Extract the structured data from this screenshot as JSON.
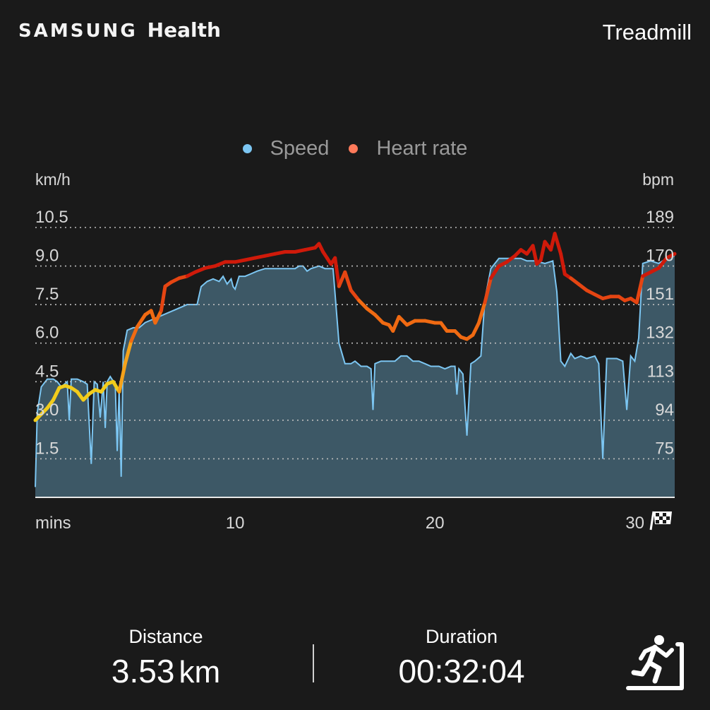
{
  "app": {
    "brand_samsung": "SAMSUNG",
    "brand_health": "Health"
  },
  "activity_title": "Treadmill",
  "legend": {
    "speed": "Speed",
    "heart_rate": "Heart rate",
    "speed_color": "#7cc6f2",
    "heart_rate_color": "#ff7a5a"
  },
  "chart_data": {
    "type": "line",
    "left_axis_unit": "km/h",
    "right_axis_unit": "bpm",
    "x_axis_label": "mins",
    "x_ticks": [
      10,
      20,
      30
    ],
    "xlim": [
      0,
      32
    ],
    "left_ylim": [
      0,
      10.5
    ],
    "left_ticks": [
      "10.5",
      "9.0",
      "7.5",
      "6.0",
      "4.5",
      "3.0",
      "1.5"
    ],
    "right_ticks": [
      "189",
      "170",
      "151",
      "132",
      "113",
      "94",
      "75"
    ],
    "right_tick_values": [
      189,
      170,
      151,
      132,
      113,
      94,
      75
    ],
    "grid": true,
    "legend_position": "top-center",
    "series": [
      {
        "name": "Speed",
        "color": "#7cc6f2",
        "fill": "#3d5866",
        "points": [
          [
            0,
            0.4
          ],
          [
            0.1,
            3.3
          ],
          [
            0.3,
            4.3
          ],
          [
            0.6,
            4.6
          ],
          [
            0.9,
            4.6
          ],
          [
            1.1,
            4.5
          ],
          [
            1.3,
            4.3
          ],
          [
            1.6,
            4.5
          ],
          [
            1.7,
            3.0
          ],
          [
            1.8,
            4.6
          ],
          [
            2.1,
            4.6
          ],
          [
            2.4,
            4.5
          ],
          [
            2.6,
            4.4
          ],
          [
            2.8,
            1.3
          ],
          [
            2.95,
            4.5
          ],
          [
            3.1,
            4.4
          ],
          [
            3.25,
            3.1
          ],
          [
            3.4,
            4.5
          ],
          [
            3.5,
            2.7
          ],
          [
            3.6,
            4.5
          ],
          [
            3.75,
            4.7
          ],
          [
            4.0,
            4.4
          ],
          [
            4.1,
            1.8
          ],
          [
            4.2,
            4.3
          ],
          [
            4.3,
            0.8
          ],
          [
            4.4,
            5.7
          ],
          [
            4.6,
            6.5
          ],
          [
            4.9,
            6.6
          ],
          [
            5.2,
            6.6
          ],
          [
            5.5,
            6.8
          ],
          [
            5.8,
            6.9
          ],
          [
            6.1,
            7.0
          ],
          [
            6.4,
            7.1
          ],
          [
            6.7,
            7.2
          ],
          [
            7.0,
            7.3
          ],
          [
            7.3,
            7.4
          ],
          [
            7.6,
            7.5
          ],
          [
            8.0,
            7.5
          ],
          [
            8.1,
            7.5
          ],
          [
            8.3,
            8.2
          ],
          [
            8.6,
            8.4
          ],
          [
            8.9,
            8.5
          ],
          [
            9.2,
            8.4
          ],
          [
            9.4,
            8.6
          ],
          [
            9.6,
            8.3
          ],
          [
            9.8,
            8.5
          ],
          [
            9.9,
            8.2
          ],
          [
            10.0,
            8.1
          ],
          [
            10.2,
            8.6
          ],
          [
            10.5,
            8.6
          ],
          [
            10.8,
            8.7
          ],
          [
            11.1,
            8.8
          ],
          [
            11.5,
            8.9
          ],
          [
            12.0,
            8.9
          ],
          [
            12.5,
            8.9
          ],
          [
            13.0,
            8.9
          ],
          [
            13.2,
            9.0
          ],
          [
            13.4,
            9.0
          ],
          [
            13.6,
            8.8
          ],
          [
            13.8,
            8.9
          ],
          [
            14.2,
            9.0
          ],
          [
            14.5,
            8.9
          ],
          [
            14.9,
            8.9
          ],
          [
            15.2,
            6.0
          ],
          [
            15.5,
            5.2
          ],
          [
            15.8,
            5.2
          ],
          [
            16.0,
            5.3
          ],
          [
            16.3,
            5.1
          ],
          [
            16.6,
            5.1
          ],
          [
            16.8,
            5.0
          ],
          [
            16.9,
            3.4
          ],
          [
            17.0,
            5.2
          ],
          [
            17.3,
            5.3
          ],
          [
            17.6,
            5.3
          ],
          [
            18.0,
            5.3
          ],
          [
            18.3,
            5.5
          ],
          [
            18.6,
            5.5
          ],
          [
            18.9,
            5.3
          ],
          [
            19.2,
            5.3
          ],
          [
            19.5,
            5.2
          ],
          [
            19.8,
            5.1
          ],
          [
            20.2,
            5.1
          ],
          [
            20.5,
            5.0
          ],
          [
            20.8,
            5.1
          ],
          [
            21.0,
            5.1
          ],
          [
            21.1,
            4.0
          ],
          [
            21.2,
            5.0
          ],
          [
            21.4,
            4.8
          ],
          [
            21.6,
            2.4
          ],
          [
            21.8,
            5.2
          ],
          [
            22.0,
            5.3
          ],
          [
            22.3,
            5.5
          ],
          [
            22.5,
            7.7
          ],
          [
            22.8,
            8.9
          ],
          [
            23.2,
            9.3
          ],
          [
            23.8,
            9.3
          ],
          [
            24.3,
            9.3
          ],
          [
            24.6,
            9.2
          ],
          [
            25.0,
            9.2
          ],
          [
            25.5,
            9.1
          ],
          [
            25.9,
            9.2
          ],
          [
            26.1,
            8.0
          ],
          [
            26.3,
            5.3
          ],
          [
            26.5,
            5.1
          ],
          [
            26.8,
            5.6
          ],
          [
            27.0,
            5.4
          ],
          [
            27.3,
            5.5
          ],
          [
            27.6,
            5.4
          ],
          [
            28.0,
            5.5
          ],
          [
            28.2,
            5.2
          ],
          [
            28.4,
            1.5
          ],
          [
            28.6,
            5.4
          ],
          [
            28.8,
            5.4
          ],
          [
            29.1,
            5.4
          ],
          [
            29.4,
            5.3
          ],
          [
            29.6,
            3.4
          ],
          [
            29.8,
            5.5
          ],
          [
            30.0,
            5.3
          ],
          [
            30.2,
            6.2
          ],
          [
            30.4,
            9.1
          ],
          [
            30.8,
            9.2
          ],
          [
            31.2,
            9.1
          ],
          [
            31.6,
            9.3
          ],
          [
            32.0,
            9.4
          ]
        ]
      },
      {
        "name": "Heart rate",
        "color": "#ff7a5a",
        "points": [
          [
            0,
            94
          ],
          [
            0.3,
            97
          ],
          [
            0.6,
            100
          ],
          [
            0.9,
            104
          ],
          [
            1.2,
            110
          ],
          [
            1.5,
            111
          ],
          [
            1.8,
            110
          ],
          [
            2.1,
            108
          ],
          [
            2.4,
            104
          ],
          [
            2.7,
            107
          ],
          [
            3.0,
            109
          ],
          [
            3.3,
            108
          ],
          [
            3.6,
            112
          ],
          [
            3.9,
            113
          ],
          [
            4.2,
            108
          ],
          [
            4.5,
            122
          ],
          [
            4.8,
            133
          ],
          [
            5.1,
            140
          ],
          [
            5.5,
            146
          ],
          [
            5.8,
            148
          ],
          [
            6.0,
            142
          ],
          [
            6.3,
            148
          ],
          [
            6.5,
            160
          ],
          [
            6.8,
            162
          ],
          [
            7.2,
            164
          ],
          [
            7.6,
            165
          ],
          [
            8.0,
            167
          ],
          [
            8.5,
            169
          ],
          [
            9.0,
            170
          ],
          [
            9.5,
            172
          ],
          [
            10.0,
            172
          ],
          [
            10.5,
            173
          ],
          [
            11.0,
            174
          ],
          [
            11.5,
            175
          ],
          [
            12.0,
            176
          ],
          [
            12.5,
            177
          ],
          [
            13.0,
            177
          ],
          [
            13.5,
            178
          ],
          [
            14.0,
            179
          ],
          [
            14.2,
            181
          ],
          [
            14.4,
            177
          ],
          [
            14.6,
            174
          ],
          [
            14.8,
            171
          ],
          [
            15.0,
            174
          ],
          [
            15.2,
            160
          ],
          [
            15.5,
            167
          ],
          [
            15.8,
            158
          ],
          [
            16.2,
            153
          ],
          [
            16.6,
            149
          ],
          [
            17.0,
            146
          ],
          [
            17.4,
            142
          ],
          [
            17.7,
            141
          ],
          [
            17.9,
            138
          ],
          [
            18.2,
            145
          ],
          [
            18.6,
            141
          ],
          [
            19.0,
            143
          ],
          [
            19.5,
            143
          ],
          [
            20.0,
            142
          ],
          [
            20.3,
            142
          ],
          [
            20.6,
            138
          ],
          [
            21.0,
            138
          ],
          [
            21.3,
            135
          ],
          [
            21.6,
            134
          ],
          [
            21.9,
            136
          ],
          [
            22.2,
            142
          ],
          [
            22.5,
            152
          ],
          [
            22.8,
            164
          ],
          [
            23.2,
            170
          ],
          [
            23.6,
            172
          ],
          [
            24.0,
            175
          ],
          [
            24.3,
            178
          ],
          [
            24.6,
            176
          ],
          [
            24.9,
            180
          ],
          [
            25.1,
            171
          ],
          [
            25.3,
            173
          ],
          [
            25.5,
            182
          ],
          [
            25.8,
            178
          ],
          [
            26.0,
            186
          ],
          [
            26.3,
            176
          ],
          [
            26.5,
            166
          ],
          [
            26.8,
            164
          ],
          [
            27.2,
            161
          ],
          [
            27.6,
            158
          ],
          [
            28.0,
            156
          ],
          [
            28.4,
            154
          ],
          [
            28.8,
            155
          ],
          [
            29.2,
            155
          ],
          [
            29.5,
            153
          ],
          [
            29.8,
            154
          ],
          [
            30.1,
            152
          ],
          [
            30.4,
            165
          ],
          [
            30.8,
            167
          ],
          [
            31.2,
            169
          ],
          [
            31.6,
            174
          ],
          [
            32.0,
            176
          ]
        ]
      }
    ]
  },
  "stats": {
    "distance_label": "Distance",
    "distance_value": "3.53",
    "distance_unit": "km",
    "duration_label": "Duration",
    "duration_value": "00:32:04"
  },
  "icons": {
    "finish": "checkered-flag-icon",
    "activity": "treadmill-runner-icon"
  }
}
